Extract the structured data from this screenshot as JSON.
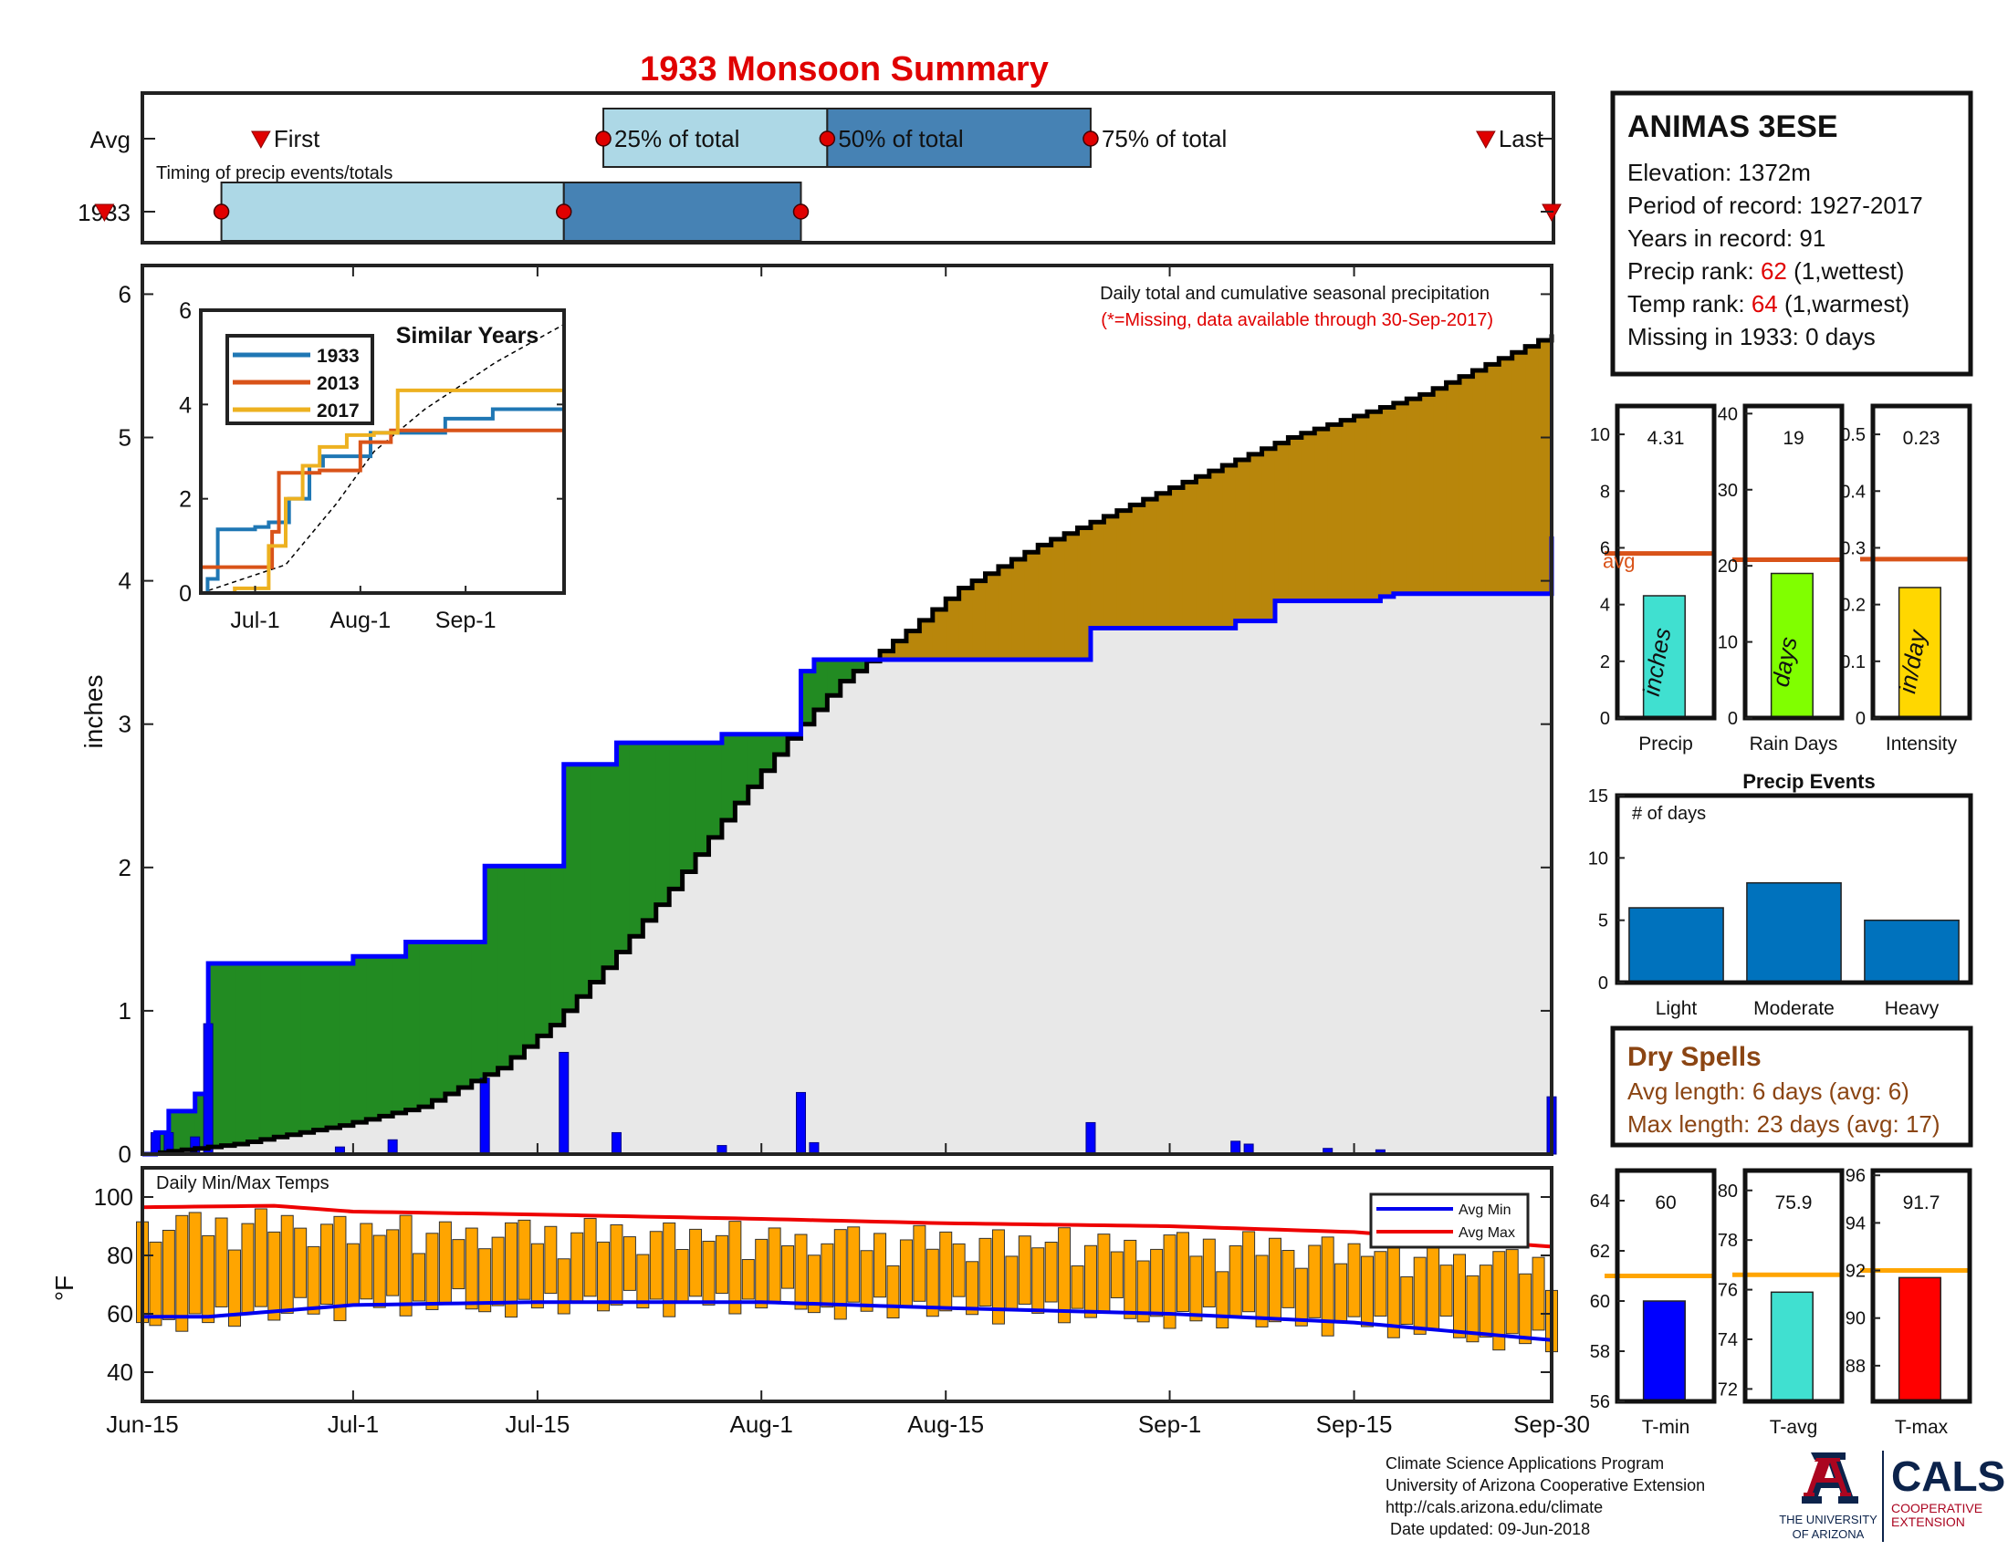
{
  "title": "1933 Monsoon Summary",
  "timing": {
    "label_avg": "Avg",
    "label_year": "1933",
    "caption": "Timing of precip events/totals",
    "first_label": "First",
    "last_label": "Last",
    "p25_label": "25% of total",
    "p50_label": "50% of total",
    "p75_label": "75% of total",
    "avg": {
      "first": "2024-06-24",
      "p25": "2024-07-20",
      "p50": "2024-08-06",
      "p75": "2024-08-26",
      "last": "2024-09-25"
    },
    "year": {
      "first": "2024-06-16",
      "p25": "2024-06-21",
      "p50": "2024-07-17",
      "p75": "2024-08-04",
      "last": "2024-09-30"
    }
  },
  "station": {
    "name": "ANIMAS 3ESE",
    "elevation": "Elevation: 1372m",
    "period": "Period of record: 1927-2017",
    "years": "Years in record: 91",
    "precip_rank_label": "Precip rank: ",
    "precip_rank_value": "62",
    "precip_rank_suffix": " (1,wettest)",
    "temp_rank_label": "Temp rank: ",
    "temp_rank_value": "64",
    "temp_rank_suffix": " (1,warmest)",
    "missing": "Missing in 1933: 0 days"
  },
  "chart_data": [
    {
      "type": "area",
      "id": "main-precip",
      "ylabel": "inches",
      "ylim": [
        0,
        6.2
      ],
      "yticks": [
        0,
        1,
        2,
        3,
        4,
        5,
        6
      ],
      "xlim": [
        "2024-06-15",
        "2024-09-30"
      ],
      "xticks": [
        [
          "2024-06-15",
          "Jun-15"
        ],
        [
          "2024-07-01",
          "Jul-1"
        ],
        [
          "2024-07-15",
          "Jul-15"
        ],
        [
          "2024-08-01",
          "Aug-1"
        ],
        [
          "2024-08-15",
          "Aug-15"
        ],
        [
          "2024-09-01",
          "Sep-1"
        ],
        [
          "2024-09-15",
          "Sep-15"
        ],
        [
          "2024-09-30",
          "Sep-30"
        ]
      ],
      "annotation": "Daily total and cumulative seasonal precipitation",
      "annotation2": "(*=Missing, data available through 30-Sep-2017)",
      "avg_cumulative": [
        [
          "2024-06-15",
          0
        ],
        [
          "2024-06-22",
          0.07
        ],
        [
          "2024-06-30",
          0.2
        ],
        [
          "2024-07-06",
          0.33
        ],
        [
          "2024-07-12",
          0.6
        ],
        [
          "2024-07-16",
          0.9
        ],
        [
          "2024-07-20",
          1.3
        ],
        [
          "2024-07-25",
          1.85
        ],
        [
          "2024-07-30",
          2.45
        ],
        [
          "2024-08-03",
          2.9
        ],
        [
          "2024-08-07",
          3.3
        ],
        [
          "2024-08-12",
          3.65
        ],
        [
          "2024-08-16",
          3.95
        ],
        [
          "2024-08-22",
          4.25
        ],
        [
          "2024-09-01",
          4.65
        ],
        [
          "2024-09-10",
          5.0
        ],
        [
          "2024-09-20",
          5.3
        ],
        [
          "2024-09-30",
          5.72
        ]
      ],
      "year_cumulative": [
        [
          "2024-06-15",
          0
        ],
        [
          "2024-06-16",
          0.15
        ],
        [
          "2024-06-17",
          0.3
        ],
        [
          "2024-06-19",
          0.42
        ],
        [
          "2024-06-20",
          1.33
        ],
        [
          "2024-07-01",
          1.38
        ],
        [
          "2024-07-05",
          1.48
        ],
        [
          "2024-07-11",
          2.01
        ],
        [
          "2024-07-17",
          2.72
        ],
        [
          "2024-07-21",
          2.87
        ],
        [
          "2024-07-29",
          2.93
        ],
        [
          "2024-08-04",
          3.37
        ],
        [
          "2024-08-05",
          3.45
        ],
        [
          "2024-08-26",
          3.67
        ],
        [
          "2024-09-06",
          3.72
        ],
        [
          "2024-09-09",
          3.86
        ],
        [
          "2024-09-17",
          3.89
        ],
        [
          "2024-09-18",
          3.91
        ],
        [
          "2024-09-30",
          4.31
        ]
      ],
      "daily": [
        [
          "2024-06-16",
          0.15
        ],
        [
          "2024-06-17",
          0.15
        ],
        [
          "2024-06-19",
          0.12
        ],
        [
          "2024-06-20",
          0.91
        ],
        [
          "2024-06-30",
          0.05
        ],
        [
          "2024-07-04",
          0.1
        ],
        [
          "2024-07-11",
          0.53
        ],
        [
          "2024-07-17",
          0.71
        ],
        [
          "2024-07-21",
          0.15
        ],
        [
          "2024-07-29",
          0.06
        ],
        [
          "2024-08-04",
          0.43
        ],
        [
          "2024-08-05",
          0.08
        ],
        [
          "2024-08-26",
          0.22
        ],
        [
          "2024-09-06",
          0.09
        ],
        [
          "2024-09-07",
          0.07
        ],
        [
          "2024-09-13",
          0.04
        ],
        [
          "2024-09-17",
          0.03
        ],
        [
          "2024-09-30",
          0.4
        ]
      ]
    },
    {
      "type": "line",
      "id": "similar-years",
      "title": "Similar Years",
      "ylim": [
        0,
        6
      ],
      "yticks": [
        0,
        2,
        4,
        6
      ],
      "xticks": [
        [
          "2024-07-01",
          "Jul-1"
        ],
        [
          "2024-08-01",
          "Aug-1"
        ],
        [
          "2024-09-01",
          "Sep-1"
        ]
      ],
      "series": [
        {
          "name": "1933",
          "color": "#1f77b4",
          "values": [
            [
              "2024-06-15",
              0
            ],
            [
              "2024-06-17",
              0.3
            ],
            [
              "2024-06-20",
              1.35
            ],
            [
              "2024-07-01",
              1.4
            ],
            [
              "2024-07-05",
              1.5
            ],
            [
              "2024-07-11",
              2.0
            ],
            [
              "2024-07-17",
              2.7
            ],
            [
              "2024-07-21",
              2.9
            ],
            [
              "2024-08-04",
              3.4
            ],
            [
              "2024-08-26",
              3.7
            ],
            [
              "2024-09-09",
              3.9
            ],
            [
              "2024-09-30",
              4.3
            ]
          ]
        },
        {
          "name": "2013",
          "color": "#d95319",
          "values": [
            [
              "2024-06-15",
              0.55
            ],
            [
              "2024-06-30",
              0.55
            ],
            [
              "2024-07-06",
              1.3
            ],
            [
              "2024-07-08",
              2.55
            ],
            [
              "2024-07-20",
              2.6
            ],
            [
              "2024-08-01",
              3.2
            ],
            [
              "2024-08-10",
              3.45
            ],
            [
              "2024-09-30",
              3.6
            ]
          ]
        },
        {
          "name": "2017",
          "color": "#edb120",
          "values": [
            [
              "2024-06-15",
              0
            ],
            [
              "2024-06-25",
              0.1
            ],
            [
              "2024-07-05",
              1.0
            ],
            [
              "2024-07-10",
              2.0
            ],
            [
              "2024-07-15",
              2.7
            ],
            [
              "2024-07-20",
              3.1
            ],
            [
              "2024-07-28",
              3.35
            ],
            [
              "2024-08-05",
              3.4
            ],
            [
              "2024-08-12",
              4.3
            ],
            [
              "2024-09-30",
              4.35
            ]
          ]
        }
      ],
      "avg_line": [
        [
          "2024-06-15",
          0
        ],
        [
          "2024-07-10",
          0.6
        ],
        [
          "2024-07-25",
          1.9
        ],
        [
          "2024-08-05",
          3.0
        ],
        [
          "2024-08-20",
          3.9
        ],
        [
          "2024-09-10",
          4.9
        ],
        [
          "2024-09-30",
          5.7
        ]
      ]
    },
    {
      "type": "bar",
      "id": "temps",
      "title": "Daily Min/Max Temps",
      "ylabel": "°F",
      "ylim": [
        30,
        110
      ],
      "yticks": [
        40,
        60,
        80,
        100
      ],
      "legend": [
        "Avg Min",
        "Avg Max"
      ],
      "avg_min": [
        [
          "2024-06-15",
          59
        ],
        [
          "2024-06-20",
          59
        ],
        [
          "2024-07-01",
          63
        ],
        [
          "2024-07-15",
          64
        ],
        [
          "2024-08-01",
          64
        ],
        [
          "2024-08-15",
          62
        ],
        [
          "2024-09-01",
          60
        ],
        [
          "2024-09-15",
          57
        ],
        [
          "2024-09-30",
          51
        ]
      ],
      "avg_max": [
        [
          "2024-06-15",
          96.5
        ],
        [
          "2024-06-25",
          97
        ],
        [
          "2024-07-01",
          95
        ],
        [
          "2024-07-15",
          94
        ],
        [
          "2024-08-01",
          92.5
        ],
        [
          "2024-08-15",
          91
        ],
        [
          "2024-09-01",
          90
        ],
        [
          "2024-09-15",
          88
        ],
        [
          "2024-09-30",
          83
        ]
      ]
    },
    {
      "type": "bar",
      "id": "precip-summary",
      "panels": [
        {
          "name": "Precip",
          "value": 4.31,
          "avg": 5.8,
          "ylim": [
            0,
            11
          ],
          "yticks": [
            0,
            2,
            4,
            6,
            8,
            10
          ],
          "color": "#40e0d0",
          "unit": "inches",
          "label": "4.31",
          "avg_label": "avg"
        },
        {
          "name": "Rain Days",
          "value": 19,
          "avg": 20.8,
          "ylim": [
            0,
            41
          ],
          "yticks": [
            0,
            10,
            20,
            30,
            40
          ],
          "color": "#80ff00",
          "unit": "days",
          "label": "19"
        },
        {
          "name": "Intensity",
          "value": 0.23,
          "avg": 0.28,
          "ylim": [
            0,
            0.55
          ],
          "yticks": [
            0,
            0.1,
            0.2,
            0.3,
            0.4,
            0.5
          ],
          "color": "#ffd700",
          "unit": "in/day",
          "label": "0.23"
        }
      ]
    },
    {
      "type": "bar",
      "id": "precip-events",
      "title": "Precip Events",
      "ylabel": "# of days",
      "categories": [
        "Light",
        "Moderate",
        "Heavy"
      ],
      "values": [
        6,
        8,
        5
      ],
      "ylim": [
        0,
        15
      ],
      "yticks": [
        0,
        5,
        10,
        15
      ]
    },
    {
      "type": "bar",
      "id": "temp-summary",
      "panels": [
        {
          "name": "T-min",
          "value": 60,
          "avg": 61,
          "ylim": [
            56,
            65.2
          ],
          "yticks": [
            56,
            58,
            60,
            62,
            64
          ],
          "color": "#0000ff",
          "label": "60"
        },
        {
          "name": "T-avg",
          "value": 75.9,
          "avg": 76.6,
          "ylim": [
            71.5,
            80.8
          ],
          "yticks": [
            72,
            74,
            76,
            78,
            80
          ],
          "color": "#40e0d0",
          "label": "75.9"
        },
        {
          "name": "T-max",
          "value": 91.7,
          "avg": 92,
          "ylim": [
            86.5,
            96.2
          ],
          "yticks": [
            88,
            90,
            92,
            94,
            96
          ],
          "color": "#ff0000",
          "label": "91.7"
        }
      ]
    }
  ],
  "dry_spells": {
    "title": "Dry Spells",
    "avg_length": "Avg length: 6 days (avg: 6)",
    "max_length": "Max length: 23 days (avg: 17)"
  },
  "footer": {
    "line1": "Climate Science Applications Program",
    "line2": "University of Arizona Cooperative Extension",
    "line3": "http://cals.arizona.edu/climate",
    "line4": " Date updated: 09-Jun-2018"
  },
  "logos": {
    "ua_text1": "THE UNIVERSITY",
    "ua_text2": "OF ARIZONA",
    "cals": "CALS",
    "cals_sub1": "COOPERATIVE",
    "cals_sub2": "EXTENSION"
  },
  "colors": {
    "title": "#e00000",
    "green_fill": "#228b22",
    "brown_fill": "#b8860b",
    "gray_fill": "#e8e8e8",
    "blue_line": "#0000ff",
    "orange_bar": "#ffa500",
    "dry_spell": "#8b4513",
    "rank_red": "#e00000",
    "event_bar": "#0072bd",
    "avg_orange": "#d95319",
    "light_blue": "#add8e6",
    "steel_blue": "#4682b4"
  }
}
